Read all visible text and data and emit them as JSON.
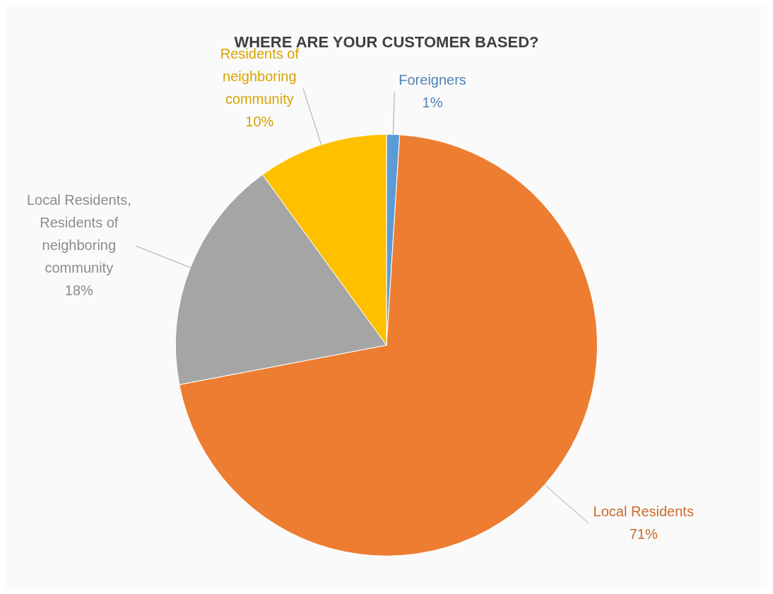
{
  "chart_data": {
    "type": "pie",
    "title": "WHERE ARE YOUR CUSTOMER BASED?",
    "categories": [
      "Foreigners",
      "Local Residents",
      "Local Residents, Residents of neighboring community",
      "Residents of neighboring community"
    ],
    "values": [
      1,
      71,
      18,
      10
    ],
    "value_labels": [
      "1%",
      "71%",
      "18%",
      "10%"
    ],
    "colors": [
      "#5b9bd5",
      "#ed7d31",
      "#a5a5a5",
      "#ffc000"
    ],
    "legend": false
  }
}
